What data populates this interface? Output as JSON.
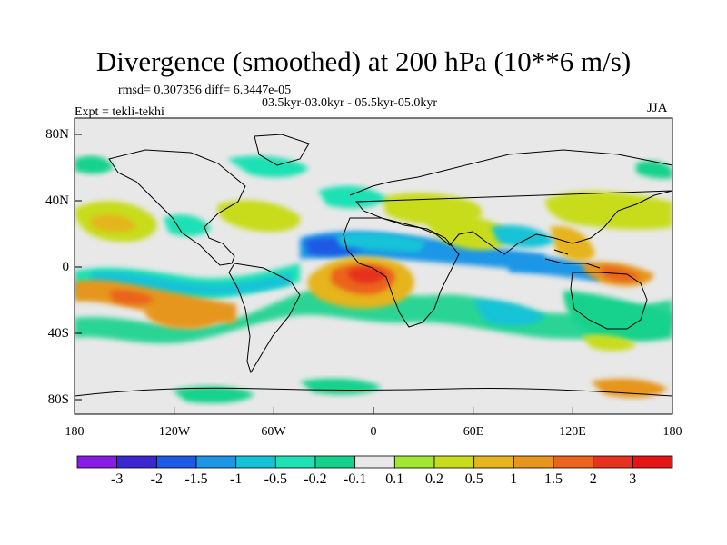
{
  "title": "Divergence (smoothed) at 200 hPa (10**6 m/s)",
  "stats_line": "rmsd= 0.307356 diff= 6.3447e-05",
  "period_line": "03.5kyr-03.0kyr - 05.5kyr-05.0kyr",
  "expt_line": "Expt = tekli-tekhi",
  "season": "JJA",
  "map": {
    "lat_labels": [
      "80N",
      "40N",
      "0",
      "40S",
      "80S"
    ],
    "lon_labels": [
      "180",
      "120W",
      "60W",
      "0",
      "60E",
      "120E",
      "180"
    ]
  },
  "colorbar": {
    "colors": [
      "#8a1ae6",
      "#3c28d2",
      "#1e5ae6",
      "#1e96e6",
      "#14c3d7",
      "#1ee1b4",
      "#14d28c",
      "#e8e8e8",
      "#a0e632",
      "#c8dc1e",
      "#e6b41e",
      "#e6961e",
      "#eb641e",
      "#e6321e",
      "#e61414"
    ],
    "labels": [
      "-3",
      "-2",
      "-1.5",
      "-1",
      "-0.5",
      "-0.2",
      "-0.1",
      "0.1",
      "0.2",
      "0.5",
      "1",
      "1.5",
      "2",
      "3"
    ]
  }
}
